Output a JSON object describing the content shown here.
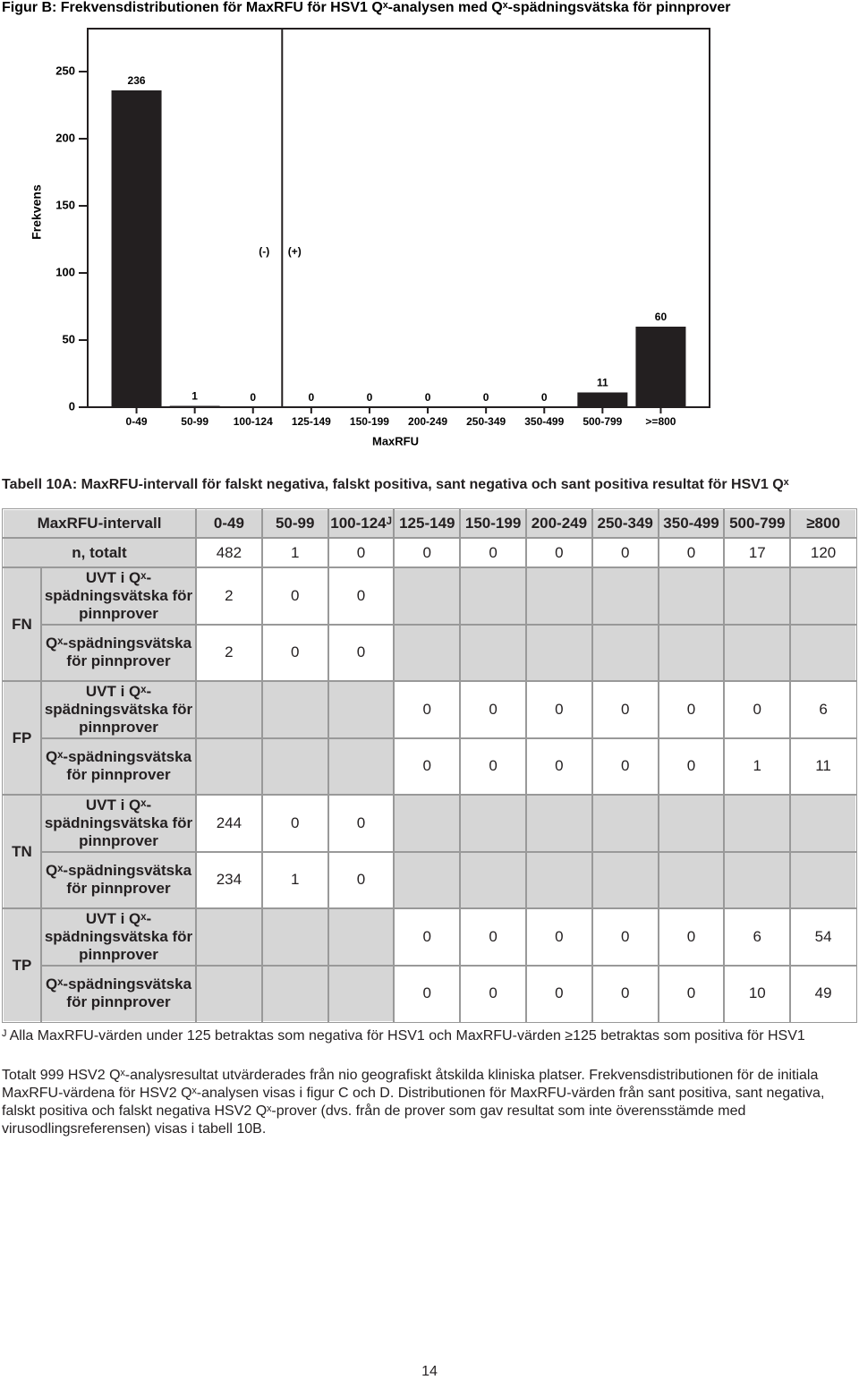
{
  "figure_title": "Figur B: Frekvensdistributionen för MaxRFU för HSV1 Qˣ-analysen med Qˣ-spädningsvätska för pinnprover",
  "chart_data": {
    "type": "bar",
    "y_label": "Frekvens",
    "x_label": "MaxRFU",
    "categories": [
      "0-49",
      "50-99",
      "100-124",
      "125-149",
      "150-199",
      "200-249",
      "250-349",
      "350-499",
      "500-799",
      ">=800"
    ],
    "values": [
      236,
      1,
      0,
      0,
      0,
      0,
      0,
      0,
      11,
      60
    ],
    "color": "#231f20",
    "ylim": [
      0,
      282
    ],
    "yticks": [
      0,
      50,
      100,
      150,
      200,
      250
    ],
    "annotations": [
      "(-)",
      "(+)"
    ]
  },
  "table": {
    "title": "Tabell 10A: MaxRFU-intervall för falskt negativa, falskt positiva, sant negativa och sant positiva resultat för HSV1 Qˣ",
    "header": [
      "MaxRFU-intervall",
      "0-49",
      "50-99",
      "100-124ᴶ",
      "125-149",
      "150-199",
      "200-249",
      "250-349",
      "350-499",
      "500-799",
      "≥800"
    ],
    "total_row": {
      "label": "n, totalt",
      "values": [
        482,
        1,
        0,
        0,
        0,
        0,
        0,
        0,
        17,
        120
      ]
    },
    "groups": [
      {
        "label": "FN",
        "rows": [
          {
            "label": "UVT i Qˣ-spädningsvätska för pinnprover",
            "cells": [
              2,
              0,
              0,
              null,
              null,
              null,
              null,
              null,
              null,
              null
            ]
          },
          {
            "label": "Qˣ-spädningsvätska för pinnprover",
            "cells": [
              2,
              0,
              0,
              null,
              null,
              null,
              null,
              null,
              null,
              null
            ]
          }
        ]
      },
      {
        "label": "FP",
        "rows": [
          {
            "label": "UVT i Qˣ-spädningsvätska för pinnprover",
            "cells": [
              null,
              null,
              null,
              0,
              0,
              0,
              0,
              0,
              0,
              6
            ]
          },
          {
            "label": "Qˣ-spädningsvätska för pinnprover",
            "cells": [
              null,
              null,
              null,
              0,
              0,
              0,
              0,
              0,
              1,
              11
            ]
          }
        ]
      },
      {
        "label": "TN",
        "rows": [
          {
            "label": "UVT i Qˣ-spädningsvätska för pinnprover",
            "cells": [
              244,
              0,
              0,
              null,
              null,
              null,
              null,
              null,
              null,
              null
            ]
          },
          {
            "label": "Qˣ-spädningsvätska för pinnprover",
            "cells": [
              234,
              1,
              0,
              null,
              null,
              null,
              null,
              null,
              null,
              null
            ]
          }
        ]
      },
      {
        "label": "TP",
        "rows": [
          {
            "label": "UVT i Qˣ-spädningsvätska för pinnprover",
            "cells": [
              null,
              null,
              null,
              0,
              0,
              0,
              0,
              0,
              6,
              54
            ]
          },
          {
            "label": "Qˣ-spädningsvätska för pinnprover",
            "cells": [
              null,
              null,
              null,
              0,
              0,
              0,
              0,
              0,
              10,
              49
            ]
          }
        ]
      }
    ]
  },
  "footnote": "ᴶ Alla MaxRFU-värden under 125 betraktas som negativa för HSV1 och MaxRFU-värden ≥125 betraktas som positiva för HSV1",
  "paragraph": "Totalt 999 HSV2 Qˣ-analysresultat utvärderades från nio geografiskt åtskilda kliniska platser. Frekvensdistributionen för de initiala MaxRFU-värdena för HSV2 Qˣ-analysen visas i figur C och D. Distributionen för MaxRFU-värden från sant positiva, sant negativa, falskt positiva och falskt negativa HSV2 Qˣ-prover (dvs. från de prover som gav resultat som inte överensstämde med virusodlingsreferensen) visas i tabell 10B.",
  "page_number": 14
}
